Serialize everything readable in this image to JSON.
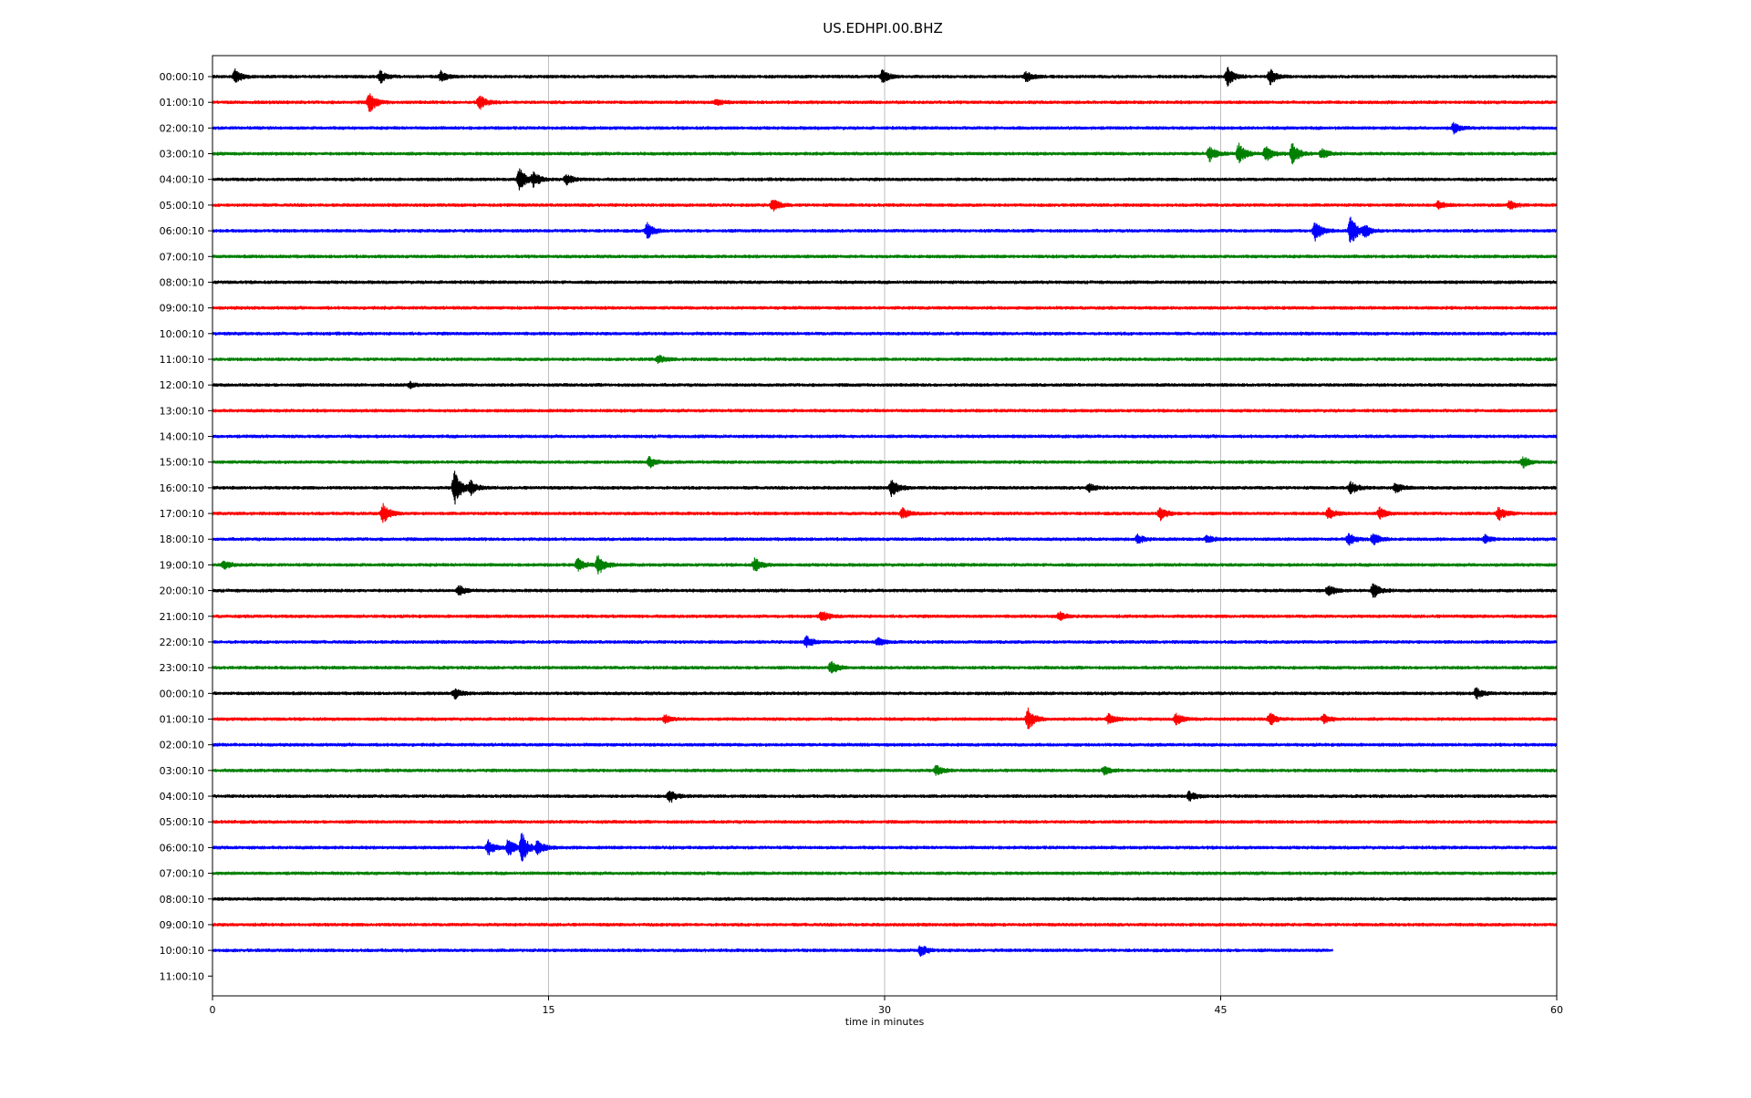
{
  "chart_data": {
    "type": "line",
    "title": "US.EDHPI.00.BHZ",
    "xlabel": "time in minutes",
    "ylabel": "",
    "xlim": [
      0,
      60
    ],
    "x_ticks": [
      "0",
      "15",
      "30",
      "45",
      "60"
    ],
    "x_tick_values": [
      0,
      15,
      30,
      45,
      60
    ],
    "grid": "vertical",
    "colors": [
      "#000000",
      "#ff0000",
      "#0000ff",
      "#008000"
    ],
    "row_labels": [
      "00:00:10",
      "01:00:10",
      "02:00:10",
      "03:00:10",
      "04:00:10",
      "05:00:10",
      "06:00:10",
      "07:00:10",
      "08:00:10",
      "09:00:10",
      "10:00:10",
      "11:00:10",
      "12:00:10",
      "13:00:10",
      "14:00:10",
      "15:00:10",
      "16:00:10",
      "17:00:10",
      "18:00:10",
      "19:00:10",
      "20:00:10",
      "21:00:10",
      "22:00:10",
      "23:00:10",
      "00:00:10",
      "01:00:10",
      "02:00:10",
      "03:00:10",
      "04:00:10",
      "05:00:10",
      "06:00:10",
      "07:00:10",
      "08:00:10",
      "09:00:10",
      "10:00:10",
      "11:00:10"
    ],
    "trace_end_minutes": [
      60,
      60,
      60,
      60,
      60,
      60,
      60,
      60,
      60,
      60,
      60,
      60,
      60,
      60,
      60,
      60,
      60,
      60,
      60,
      60,
      60,
      60,
      60,
      60,
      60,
      60,
      60,
      60,
      60,
      60,
      60,
      60,
      60,
      60,
      50,
      0
    ],
    "events": [
      {
        "row": 0,
        "minute": 1.0,
        "amp": 0.5
      },
      {
        "row": 0,
        "minute": 7.5,
        "amp": 0.45
      },
      {
        "row": 0,
        "minute": 10.2,
        "amp": 0.4
      },
      {
        "row": 0,
        "minute": 29.9,
        "amp": 0.5
      },
      {
        "row": 0,
        "minute": 36.3,
        "amp": 0.4
      },
      {
        "row": 0,
        "minute": 45.3,
        "amp": 0.7
      },
      {
        "row": 0,
        "minute": 47.2,
        "amp": 0.6
      },
      {
        "row": 1,
        "minute": 7.0,
        "amp": 0.8
      },
      {
        "row": 1,
        "minute": 11.9,
        "amp": 0.6
      },
      {
        "row": 1,
        "minute": 22.5,
        "amp": 0.2
      },
      {
        "row": 2,
        "minute": 55.4,
        "amp": 0.4
      },
      {
        "row": 3,
        "minute": 44.5,
        "amp": 0.6
      },
      {
        "row": 3,
        "minute": 45.8,
        "amp": 0.8
      },
      {
        "row": 3,
        "minute": 47.0,
        "amp": 0.6
      },
      {
        "row": 3,
        "minute": 48.2,
        "amp": 0.9
      },
      {
        "row": 3,
        "minute": 49.5,
        "amp": 0.4
      },
      {
        "row": 4,
        "minute": 13.7,
        "amp": 0.9
      },
      {
        "row": 4,
        "minute": 14.3,
        "amp": 0.6
      },
      {
        "row": 4,
        "minute": 15.8,
        "amp": 0.4
      },
      {
        "row": 5,
        "minute": 25.0,
        "amp": 0.5
      },
      {
        "row": 5,
        "minute": 54.7,
        "amp": 0.25
      },
      {
        "row": 5,
        "minute": 57.9,
        "amp": 0.3
      },
      {
        "row": 6,
        "minute": 19.4,
        "amp": 0.6
      },
      {
        "row": 6,
        "minute": 49.2,
        "amp": 0.8
      },
      {
        "row": 6,
        "minute": 50.8,
        "amp": 1.2
      },
      {
        "row": 6,
        "minute": 51.4,
        "amp": 0.6
      },
      {
        "row": 11,
        "minute": 19.9,
        "amp": 0.3
      },
      {
        "row": 12,
        "minute": 8.8,
        "amp": 0.2
      },
      {
        "row": 15,
        "minute": 19.5,
        "amp": 0.4
      },
      {
        "row": 15,
        "minute": 58.5,
        "amp": 0.4
      },
      {
        "row": 16,
        "minute": 10.8,
        "amp": 1.4
      },
      {
        "row": 16,
        "minute": 11.5,
        "amp": 0.6
      },
      {
        "row": 16,
        "minute": 30.3,
        "amp": 0.7
      },
      {
        "row": 16,
        "minute": 39.1,
        "amp": 0.3
      },
      {
        "row": 16,
        "minute": 50.8,
        "amp": 0.5
      },
      {
        "row": 16,
        "minute": 52.8,
        "amp": 0.4
      },
      {
        "row": 17,
        "minute": 7.6,
        "amp": 0.8
      },
      {
        "row": 17,
        "minute": 30.8,
        "amp": 0.4
      },
      {
        "row": 17,
        "minute": 42.3,
        "amp": 0.5
      },
      {
        "row": 17,
        "minute": 49.8,
        "amp": 0.45
      },
      {
        "row": 17,
        "minute": 52.1,
        "amp": 0.45
      },
      {
        "row": 17,
        "minute": 57.4,
        "amp": 0.5
      },
      {
        "row": 18,
        "minute": 41.3,
        "amp": 0.35
      },
      {
        "row": 18,
        "minute": 44.4,
        "amp": 0.3
      },
      {
        "row": 18,
        "minute": 50.7,
        "amp": 0.5
      },
      {
        "row": 18,
        "minute": 51.8,
        "amp": 0.45
      },
      {
        "row": 18,
        "minute": 56.8,
        "amp": 0.3
      },
      {
        "row": 19,
        "minute": 16.3,
        "amp": 0.5
      },
      {
        "row": 19,
        "minute": 17.2,
        "amp": 0.8
      },
      {
        "row": 19,
        "minute": 24.2,
        "amp": 0.5
      },
      {
        "row": 19,
        "minute": 0.5,
        "amp": 0.3
      },
      {
        "row": 20,
        "minute": 11.0,
        "amp": 0.35
      },
      {
        "row": 20,
        "minute": 49.8,
        "amp": 0.4
      },
      {
        "row": 20,
        "minute": 51.8,
        "amp": 0.6
      },
      {
        "row": 21,
        "minute": 27.2,
        "amp": 0.4
      },
      {
        "row": 21,
        "minute": 37.8,
        "amp": 0.3
      },
      {
        "row": 22,
        "minute": 26.5,
        "amp": 0.45
      },
      {
        "row": 22,
        "minute": 29.7,
        "amp": 0.3
      },
      {
        "row": 23,
        "minute": 27.6,
        "amp": 0.5
      },
      {
        "row": 24,
        "minute": 10.8,
        "amp": 0.4
      },
      {
        "row": 24,
        "minute": 56.4,
        "amp": 0.4
      },
      {
        "row": 25,
        "minute": 20.2,
        "amp": 0.3
      },
      {
        "row": 25,
        "minute": 36.4,
        "amp": 0.8
      },
      {
        "row": 25,
        "minute": 40.0,
        "amp": 0.4
      },
      {
        "row": 25,
        "minute": 43.0,
        "amp": 0.4
      },
      {
        "row": 25,
        "minute": 47.2,
        "amp": 0.5
      },
      {
        "row": 25,
        "minute": 49.6,
        "amp": 0.35
      },
      {
        "row": 27,
        "minute": 32.3,
        "amp": 0.4
      },
      {
        "row": 27,
        "minute": 39.8,
        "amp": 0.3
      },
      {
        "row": 28,
        "minute": 20.4,
        "amp": 0.5
      },
      {
        "row": 28,
        "minute": 43.6,
        "amp": 0.35
      },
      {
        "row": 30,
        "minute": 12.3,
        "amp": 0.6
      },
      {
        "row": 30,
        "minute": 13.2,
        "amp": 0.7
      },
      {
        "row": 30,
        "minute": 13.8,
        "amp": 1.2
      },
      {
        "row": 30,
        "minute": 14.5,
        "amp": 0.6
      },
      {
        "row": 34,
        "minute": 31.6,
        "amp": 0.4
      }
    ]
  }
}
